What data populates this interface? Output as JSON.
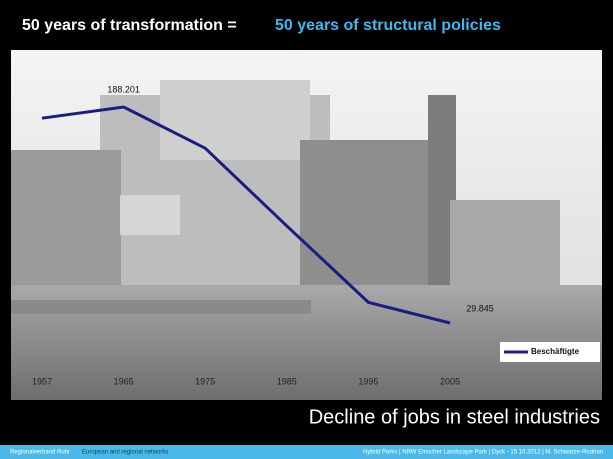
{
  "header": {
    "title_left": "50 years of transformation =",
    "title_right": "50 years of structural policies"
  },
  "chart_data": {
    "type": "line",
    "categories": [
      "1957",
      "1965",
      "1975",
      "1985",
      "1995",
      "2005"
    ],
    "series": [
      {
        "name": "Beschäftigte",
        "color": "#1c1c82",
        "values": [
          180000,
          188201,
          158000,
          101000,
          45000,
          29845
        ],
        "value_labels": [
          null,
          "188.201",
          null,
          null,
          null,
          "29.845"
        ]
      }
    ]
  },
  "caption": "Decline of jobs in steel industries",
  "footer": {
    "left_a": "Regionalverband Ruhr",
    "left_b": "European and regional networks",
    "right": "Hybrid Parks  |  NRW  Emscher Landscape Park  |  Dyck - 15.10.2012  |  M. Schwarze-Rodrian"
  }
}
